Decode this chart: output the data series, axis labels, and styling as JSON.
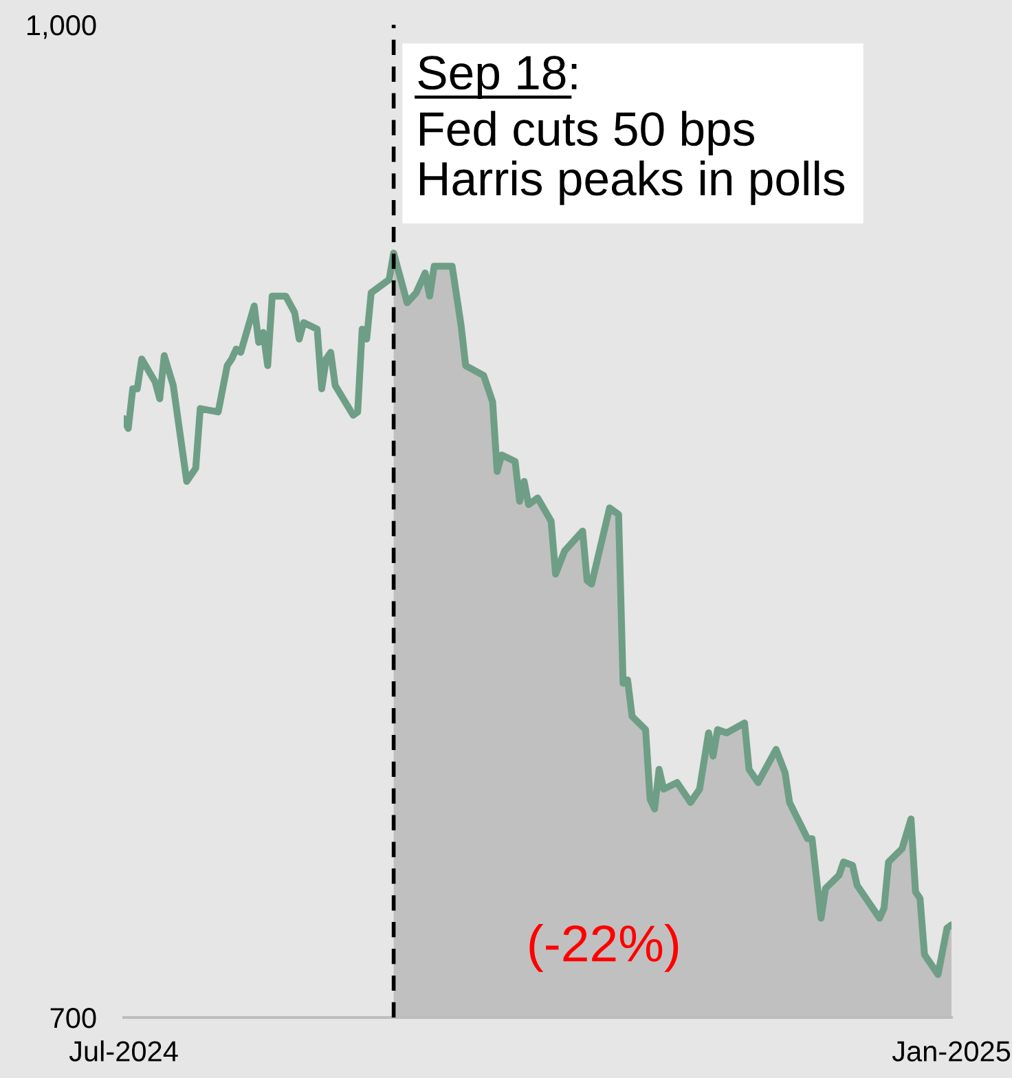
{
  "chart_data": {
    "type": "line",
    "x": [
      "2024-07-01",
      "2024-07-02",
      "2024-07-03",
      "2024-07-04",
      "2024-07-05",
      "2024-07-08",
      "2024-07-09",
      "2024-07-10",
      "2024-07-12",
      "2024-07-15",
      "2024-07-17",
      "2024-07-18",
      "2024-07-22",
      "2024-07-24",
      "2024-07-25",
      "2024-07-26",
      "2024-07-27",
      "2024-07-30",
      "2024-07-31",
      "2024-08-01",
      "2024-08-02",
      "2024-08-03",
      "2024-08-06",
      "2024-08-08",
      "2024-08-09",
      "2024-08-10",
      "2024-08-13",
      "2024-08-14",
      "2024-08-15",
      "2024-08-16",
      "2024-08-17",
      "2024-08-21",
      "2024-08-22",
      "2024-08-23",
      "2024-08-24",
      "2024-08-25",
      "2024-08-29",
      "2024-08-30",
      "2024-09-02",
      "2024-09-04",
      "2024-09-06",
      "2024-09-07",
      "2024-09-08",
      "2024-09-12",
      "2024-09-14",
      "2024-09-15",
      "2024-09-19",
      "2024-09-21",
      "2024-09-22",
      "2024-09-23",
      "2024-09-26",
      "2024-09-27",
      "2024-09-28",
      "2024-09-29",
      "2024-10-01",
      "2024-10-04",
      "2024-10-05",
      "2024-10-07",
      "2024-10-11",
      "2024-10-12",
      "2024-10-13",
      "2024-10-17",
      "2024-10-19",
      "2024-10-20",
      "2024-10-21",
      "2024-10-22",
      "2024-10-25",
      "2024-10-26",
      "2024-10-27",
      "2024-10-28",
      "2024-10-29",
      "2024-11-01",
      "2024-11-04",
      "2024-11-06",
      "2024-11-08",
      "2024-11-09",
      "2024-11-10",
      "2024-11-12",
      "2024-11-16",
      "2024-11-17",
      "2024-11-19",
      "2024-11-23",
      "2024-11-25",
      "2024-11-26",
      "2024-11-30",
      "2024-12-01",
      "2024-12-03",
      "2024-12-04",
      "2024-12-07",
      "2024-12-08",
      "2024-12-10",
      "2024-12-11",
      "2024-12-16",
      "2024-12-17",
      "2024-12-18",
      "2024-12-21",
      "2024-12-23",
      "2024-12-24",
      "2024-12-25",
      "2024-12-26",
      "2024-12-29",
      "2024-12-31",
      "2025-01-01"
    ],
    "series": [
      {
        "type": "area",
        "color": "#c0c0c0",
        "x": [
          "2024-08-30",
          "2024-09-02",
          "2024-09-04",
          "2024-09-06",
          "2024-09-07",
          "2024-09-08",
          "2024-09-12",
          "2024-09-14",
          "2024-09-15",
          "2024-09-19",
          "2024-09-21",
          "2024-09-22",
          "2024-09-23",
          "2024-09-26",
          "2024-09-27",
          "2024-09-28",
          "2024-09-29",
          "2024-10-01",
          "2024-10-04",
          "2024-10-05",
          "2024-10-07",
          "2024-10-11",
          "2024-10-12",
          "2024-10-13",
          "2024-10-17",
          "2024-10-19",
          "2024-10-20",
          "2024-10-21",
          "2024-10-22",
          "2024-10-25",
          "2024-10-26",
          "2024-10-27",
          "2024-10-28",
          "2024-10-29",
          "2024-11-01",
          "2024-11-04",
          "2024-11-06",
          "2024-11-08",
          "2024-11-09",
          "2024-11-10",
          "2024-11-12",
          "2024-11-16",
          "2024-11-17",
          "2024-11-19",
          "2024-11-23",
          "2024-11-25",
          "2024-11-26",
          "2024-11-30",
          "2024-12-01",
          "2024-12-03",
          "2024-12-04",
          "2024-12-07",
          "2024-12-08",
          "2024-12-10",
          "2024-12-11",
          "2024-12-16",
          "2024-12-17",
          "2024-12-18",
          "2024-12-21",
          "2024-12-23",
          "2024-12-24",
          "2024-12-25",
          "2024-12-26",
          "2024-12-29",
          "2024-12-31",
          "2025-01-01"
        ],
        "values": [
          931,
          916,
          919,
          925,
          918,
          927,
          927,
          909,
          897,
          894,
          886,
          865,
          870,
          868,
          856,
          862,
          855,
          857,
          850,
          834,
          841,
          847,
          832,
          831,
          854,
          852,
          801,
          802,
          791,
          787,
          766,
          763,
          775,
          769,
          771,
          765,
          769,
          786,
          779,
          787,
          786,
          789,
          775,
          771,
          781,
          774,
          765,
          754,
          754,
          730,
          739,
          743,
          747,
          746,
          740,
          730,
          733,
          747,
          751,
          760,
          738,
          736,
          719,
          713,
          727,
          728
        ]
      },
      {
        "color": "#6f9e86",
        "values": [
          881,
          878,
          890,
          890,
          899,
          892,
          887,
          900,
          891,
          862,
          866,
          884,
          883,
          897,
          899,
          902,
          901,
          915,
          904,
          907,
          897,
          918,
          918,
          913,
          905,
          910,
          908,
          890,
          899,
          901,
          891,
          882,
          883,
          908,
          905,
          919,
          923,
          931,
          916,
          919,
          925,
          918,
          927,
          927,
          909,
          897,
          894,
          886,
          865,
          870,
          868,
          856,
          862,
          855,
          857,
          850,
          834,
          841,
          847,
          832,
          831,
          854,
          852,
          801,
          802,
          791,
          787,
          766,
          763,
          775,
          769,
          771,
          765,
          769,
          786,
          779,
          787,
          786,
          789,
          775,
          771,
          781,
          774,
          765,
          754,
          754,
          730,
          739,
          743,
          747,
          746,
          740,
          730,
          733,
          747,
          751,
          760,
          738,
          736,
          719,
          713,
          727,
          728
        ]
      }
    ],
    "xlim": [
      "2024-07-01",
      "2025-01-01"
    ],
    "xticks": [
      {
        "value": "2024-07-01",
        "label": "Jul-2024"
      },
      {
        "value": "2025-01-01",
        "label": "Jan-2025"
      }
    ],
    "ylim": [
      700,
      1000
    ],
    "yticks": [
      700,
      {
        "value": 1000,
        "label": "1,000"
      }
    ],
    "ref_lines": [
      {
        "axis": "x",
        "value": "2024-08-30",
        "label": "Sep 18:",
        "color": "#000000",
        "line_style": "dashed"
      }
    ],
    "annotations": [
      "Fed cuts 50 bps\nHarris peaks in polls",
      "(-22%)"
    ],
    "grid": false,
    "legend": false
  }
}
